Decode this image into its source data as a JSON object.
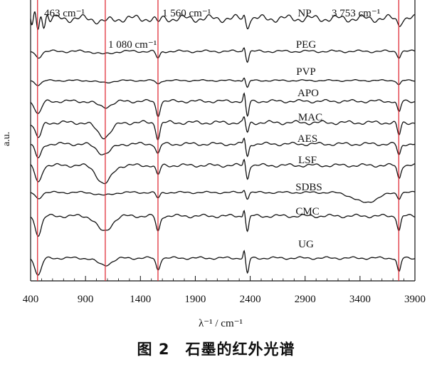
{
  "chart_data": {
    "type": "line",
    "xlabel": "λ⁻¹ / cm⁻¹",
    "ylabel": "a.u.",
    "xlim": [
      400,
      3900
    ],
    "xticks": [
      "400",
      "900",
      "1400",
      "1900",
      "2400",
      "2900",
      "3400",
      "3900"
    ],
    "grid": false,
    "series": [
      {
        "name": "NP"
      },
      {
        "name": "PEG"
      },
      {
        "name": "PVP"
      },
      {
        "name": "APO"
      },
      {
        "name": "MAC"
      },
      {
        "name": "AES"
      },
      {
        "name": "LSF"
      },
      {
        "name": "SDBS"
      },
      {
        "name": "CMC"
      },
      {
        "name": "UG"
      }
    ],
    "reference_lines": [
      {
        "x": 463,
        "label": "463 cm⁻¹"
      },
      {
        "x": 1080,
        "label": "1 080 cm⁻¹"
      },
      {
        "x": 1560,
        "label": "1 560 cm⁻¹"
      },
      {
        "x": 3753,
        "label": "3 753 cm⁻¹"
      }
    ],
    "line_color": "#111111",
    "reference_color": "#e0303a"
  },
  "caption": "图 2　石墨的红外光谱"
}
